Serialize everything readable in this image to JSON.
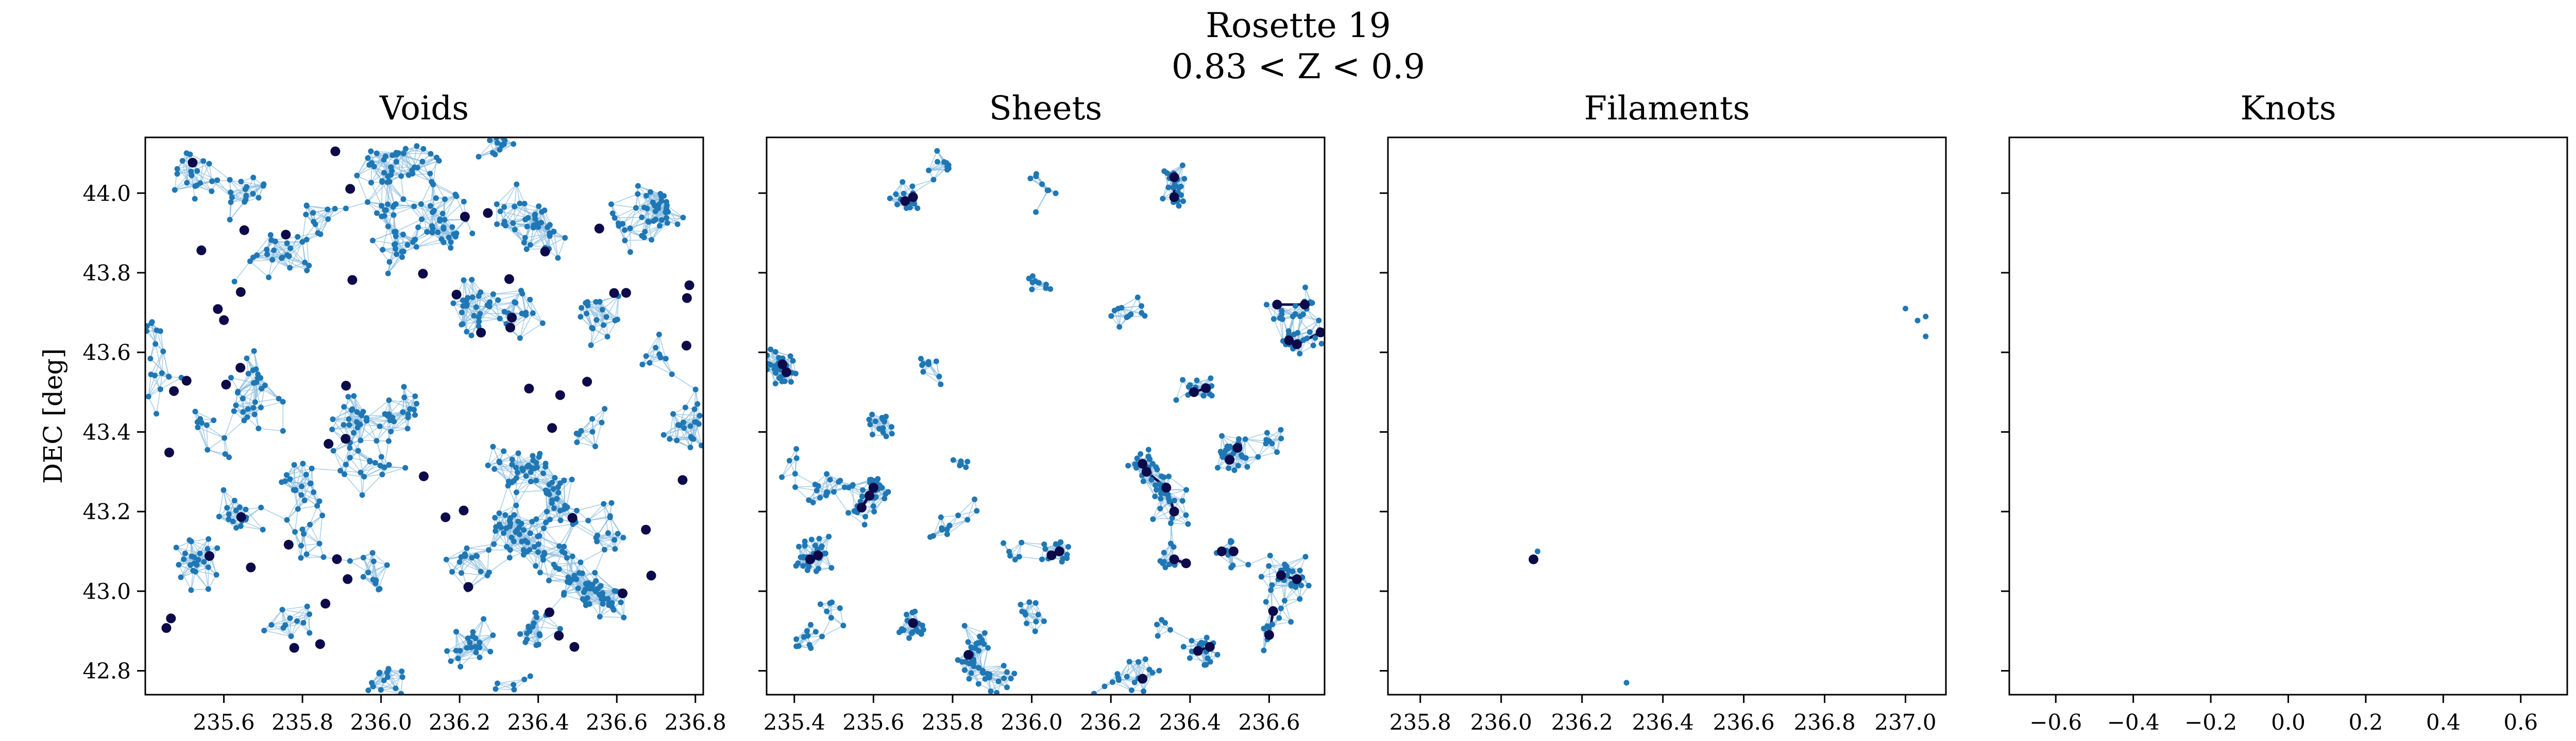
{
  "figure": {
    "title_line1": "Rosette 19",
    "title_line2": "0.83 < Z < 0.9"
  },
  "colors": {
    "point": "#1f77b4",
    "edge": "#8fbfe0",
    "highlight": "#0d0a4a",
    "axis": "#000000"
  },
  "chart_data": [
    {
      "type": "scatter",
      "title": "Voids",
      "ylabel": "DEC [deg]",
      "xlim": [
        235.4,
        236.82
      ],
      "ylim": [
        42.74,
        44.14
      ],
      "xticks": [
        "235.6",
        "235.8",
        "236.0",
        "236.2",
        "236.4",
        "236.6",
        "236.8"
      ],
      "yticks": [
        "42.8",
        "43.0",
        "43.2",
        "43.4",
        "43.6",
        "43.8",
        "44.0"
      ],
      "show_ytick_labels": true,
      "network": "dense",
      "point_count": 900,
      "highlight_count": 60
    },
    {
      "type": "scatter",
      "title": "Sheets",
      "xlim": [
        235.33,
        236.74
      ],
      "ylim": [
        42.74,
        44.14
      ],
      "xticks": [
        "235.4",
        "235.6",
        "235.8",
        "236.0",
        "236.2",
        "236.4",
        "236.6"
      ],
      "yticks": [
        "42.8",
        "43.0",
        "43.2",
        "43.4",
        "43.6",
        "43.8",
        "44.0"
      ],
      "show_ytick_labels": false,
      "network": "clustered",
      "highlight_points": [
        [
          235.68,
          43.98
        ],
        [
          235.7,
          43.99
        ],
        [
          236.36,
          44.04
        ],
        [
          236.36,
          43.99
        ],
        [
          235.37,
          43.57
        ],
        [
          235.38,
          43.55
        ],
        [
          236.62,
          43.72
        ],
        [
          236.69,
          43.72
        ],
        [
          236.65,
          43.63
        ],
        [
          236.67,
          43.62
        ],
        [
          236.73,
          43.65
        ],
        [
          236.41,
          43.5
        ],
        [
          236.44,
          43.51
        ],
        [
          236.5,
          43.33
        ],
        [
          236.52,
          43.36
        ],
        [
          236.28,
          43.32
        ],
        [
          236.29,
          43.3
        ],
        [
          235.59,
          43.24
        ],
        [
          235.6,
          43.26
        ],
        [
          235.57,
          43.21
        ],
        [
          235.46,
          43.09
        ],
        [
          235.44,
          43.08
        ],
        [
          236.07,
          43.1
        ],
        [
          236.05,
          43.09
        ],
        [
          236.34,
          43.26
        ],
        [
          236.36,
          43.2
        ],
        [
          236.36,
          43.08
        ],
        [
          236.39,
          43.07
        ],
        [
          236.48,
          43.1
        ],
        [
          236.51,
          43.1
        ],
        [
          236.63,
          43.04
        ],
        [
          236.67,
          43.03
        ],
        [
          236.61,
          42.95
        ],
        [
          236.6,
          42.89
        ],
        [
          236.42,
          42.85
        ],
        [
          236.45,
          42.86
        ],
        [
          235.7,
          42.92
        ],
        [
          235.84,
          42.84
        ],
        [
          236.28,
          42.78
        ]
      ],
      "point_count": 620
    },
    {
      "type": "scatter",
      "title": "Filaments",
      "xlim": [
        235.72,
        237.1
      ],
      "ylim": [
        42.74,
        44.14
      ],
      "xticks": [
        "235.8",
        "236.0",
        "236.2",
        "236.4",
        "236.6",
        "236.8",
        "237.0"
      ],
      "yticks": [
        "42.8",
        "43.0",
        "43.2",
        "43.4",
        "43.6",
        "43.8",
        "44.0"
      ],
      "show_ytick_labels": false,
      "network": "none",
      "points": [
        [
          237.0,
          43.71
        ],
        [
          237.03,
          43.68
        ],
        [
          237.05,
          43.69
        ],
        [
          237.05,
          43.64
        ],
        [
          236.09,
          43.1
        ],
        [
          236.31,
          42.77
        ]
      ],
      "highlight_points": [
        [
          236.08,
          43.08
        ]
      ]
    },
    {
      "type": "scatter",
      "title": "Knots",
      "xlim": [
        -0.72,
        0.72
      ],
      "ylim": [
        42.74,
        44.14
      ],
      "xticks": [
        "−0.6",
        "−0.4",
        "−0.2",
        "0.0",
        "0.2",
        "0.4",
        "0.6"
      ],
      "yticks": [
        "42.8",
        "43.0",
        "43.2",
        "43.4",
        "43.6",
        "43.8",
        "44.0"
      ],
      "show_ytick_labels": false,
      "network": "none",
      "points": [],
      "highlight_points": []
    }
  ]
}
